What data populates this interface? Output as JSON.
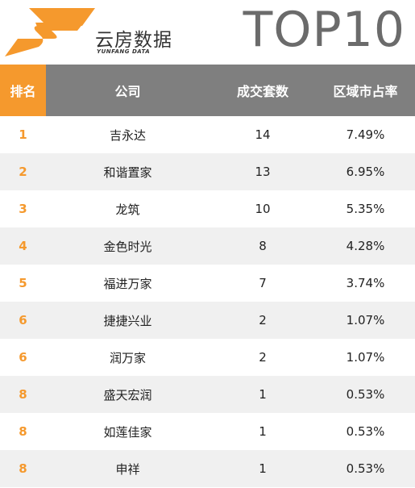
{
  "brand": {
    "name": "云房数据",
    "subtitle": "YUNFANG DATA",
    "accent_color": "#f5992d",
    "header_color": "#7f7f7f"
  },
  "title": "TOP10",
  "columns": {
    "rank": "排名",
    "company": "公司",
    "deals": "成交套数",
    "share": "区域市占率"
  },
  "rows": [
    {
      "rank": "1",
      "company": "吉永达",
      "deals": "14",
      "share": "7.49%"
    },
    {
      "rank": "2",
      "company": "和谐置家",
      "deals": "13",
      "share": "6.95%"
    },
    {
      "rank": "3",
      "company": "龙筑",
      "deals": "10",
      "share": "5.35%"
    },
    {
      "rank": "4",
      "company": "金色时光",
      "deals": "8",
      "share": "4.28%"
    },
    {
      "rank": "5",
      "company": "福进万家",
      "deals": "7",
      "share": "3.74%"
    },
    {
      "rank": "6",
      "company": "捷捷兴业",
      "deals": "2",
      "share": "1.07%"
    },
    {
      "rank": "6",
      "company": "润万家",
      "deals": "2",
      "share": "1.07%"
    },
    {
      "rank": "8",
      "company": "盛天宏润",
      "deals": "1",
      "share": "0.53%"
    },
    {
      "rank": "8",
      "company": "如莲佳家",
      "deals": "1",
      "share": "0.53%"
    },
    {
      "rank": "8",
      "company": "申祥",
      "deals": "1",
      "share": "0.53%"
    }
  ]
}
